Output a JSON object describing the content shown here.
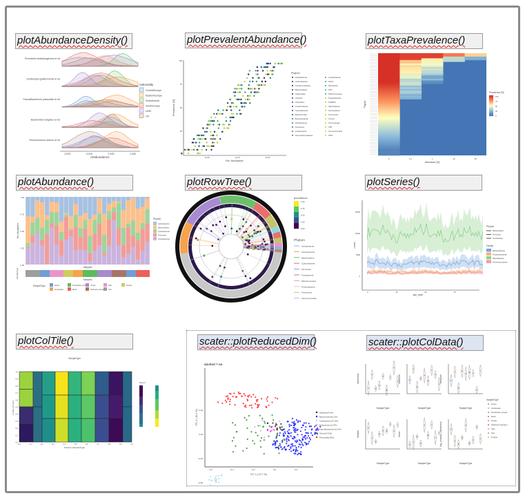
{
  "titles": [
    "plotAbundanceDensity()",
    "plotPrevalentAbundance()",
    "plotTaxaPrevalence()",
    "plotAbundance()",
    "plotRowTree()",
    "plotSeries()",
    "plotColTile()",
    "scater::plotReducedDim()",
    "scater::plotColData()"
  ],
  "density": {
    "taxa": [
      "Prevotella melaninogenica et rel.",
      "Oscillospira guillermondii et rel.",
      "Faecalibacterium prausnitzii et rel.",
      "Bacteroides vulgatus et rel.",
      "Ruminococcus obeum et rel."
    ],
    "legend_title": "nationality",
    "legend": [
      "CentralEurope",
      "EasternEurope",
      "Scandinavia",
      "SouthEurope",
      "UKIE",
      "US"
    ],
    "colors": [
      "#6f9ed8",
      "#f7a24c",
      "#6cc06c",
      "#e9706a",
      "#a88bd0",
      "#b08a80"
    ],
    "xticks": [
      "0.001",
      "0.010",
      "0.100",
      "1.000"
    ],
    "xlabel": "relabundance"
  },
  "prevalent": {
    "ylabel": "Prevalence [%]",
    "yticks": [
      "100",
      "75",
      "50",
      "25",
      "0"
    ],
    "xlabel": "Rel. Abundance",
    "xticks": [
      "1e-06",
      "1e-04",
      "1e-02"
    ],
    "legend_title": "Phylum",
    "legend": [
      "Acidobacteria",
      "Actinobacteria",
      "Armatimonadetes",
      "Bacteroidetes",
      "Chlamydiae",
      "Chlorobi",
      "Chloroflexi",
      "Crenarchaeota",
      "Cyanobacteria",
      "Elusimicrobia",
      "Euryarchaeota",
      "Fibrobacteres",
      "Firmicutes",
      "Fusobacteria",
      "Gemmatimonadetes",
      "Lentisphaerae",
      "NC10",
      "Nitrospirae",
      "OP3",
      "Planctomycetes",
      "Proteobacteria",
      "SAR406",
      "Spirochaetes",
      "Synergistetes",
      "Tenericutes",
      "Thermi",
      "Thermotogae",
      "TM7",
      "Verrucomicrobia",
      "WS3"
    ]
  },
  "taxaprev": {
    "ylabel": "Phylum",
    "xlabel": "Abundance [%]",
    "xticks": [
      "0",
      "0.1",
      "1",
      "10",
      "25"
    ],
    "legend_title": "Prevalence [%]",
    "legend_ticks": [
      "100",
      "75",
      "50",
      "25",
      "0"
    ]
  },
  "abundance": {
    "ylabel": "Rel. Abundance",
    "yticks": [
      "1.00",
      "0.75",
      "0.50",
      "0.25",
      "0.00"
    ],
    "xlabel": "Samples",
    "strip_label": "SampleType",
    "legend_title": "Phylum",
    "legend": [
      "Actinobacteria",
      "Bacteroidetes",
      "Cyanobacteria",
      "Firmicutes",
      "Proteobacteria"
    ],
    "colors": [
      "#a6c1e2",
      "#fdc08a",
      "#9fd49a",
      "#f29d98",
      "#cbb3de"
    ],
    "sample_legend_title": "SampleType",
    "sample_types": [
      "Feces",
      "Freshwater",
      "Freshwater (creek)",
      "Mock",
      "Ocean",
      "Sediment (estuary)",
      "Skin",
      "Soil",
      "Tongue"
    ],
    "sample_colors": [
      "#6f9ed8",
      "#f7a24c",
      "#5cbc5c",
      "#ea615a",
      "#a98acb",
      "#a77566",
      "#ea95c8",
      "#9e9e9e",
      "#cfcc5e"
    ]
  },
  "rowtree": {
    "prev_title": "prevalence",
    "prev_ticks": [
      "1.00",
      "0.75",
      "0.50",
      "0.25",
      "0.00"
    ],
    "legend_title": "Phylum",
    "legend": [
      "Acidobacteria",
      "Actinobacteria",
      "Bacteroidetes",
      "Cyanobacteria",
      "Firmicutes",
      "Fusobacteria",
      "Planctomycetes",
      "Proteobacteria",
      "Tenericutes",
      "Verrucomicrobia"
    ],
    "colors": [
      "#8fb5dc",
      "#f7a24c",
      "#6cc06c",
      "#e9706a",
      "#a88bd0",
      "#b08a80",
      "#ea95c8",
      "#c8c8c8",
      "#c4c46a",
      "#8ed6e0"
    ]
  },
  "series": {
    "ylabel": "counts",
    "yticks": [
      "15000",
      "10000",
      "5000",
      "0"
    ],
    "xlabel": "pair_order",
    "xticks": [
      "0",
      "25",
      "50",
      "75"
    ],
    "phylum_title": "Phylum",
    "phylum": [
      "Bacteroidetes",
      "Firmicutes",
      "Fusobacteria"
    ],
    "family_title": "Family",
    "family": [
      "Bacteroidaceae",
      "Fusobacteriaceae",
      "Rikenellaceae",
      "Ruminococcaceae"
    ],
    "family_colors": [
      "#7aa6dc",
      "#f7b27a",
      "#8fd08a",
      "#f29d98"
    ]
  },
  "coltile": {
    "top_label": "SampleType",
    "ylabel": "Fraction (Primer)",
    "xlabel": "Fraction (SampleType)",
    "legend_title": "Primer",
    "xticks": [
      "0.0",
      "0.1",
      "0.2",
      "0.3",
      "0.4",
      "0.5",
      "0.6",
      "0.7",
      "0.8",
      "0.9",
      "1.0"
    ],
    "yticks": [
      "1.0",
      "0.9",
      "0.8",
      "0.7",
      "0.6",
      "0.5",
      "0.4",
      "0.3",
      "0.2",
      "0.1",
      "0.0"
    ]
  },
  "reduced": {
    "panel_title": "alcohol = no",
    "xlabel": "PC 1 ( 21.7 %)",
    "ylabel": "PC 2 ( 16.2 %)",
    "xticks": [
      "-0.6",
      "-0.4",
      "-0.2",
      "0.0",
      "0.2"
    ],
    "yticks": [
      "0.25",
      "0.00",
      "-0.25",
      "-0.50"
    ],
    "legend": [
      "Alistipes(4.6%)",
      "Bacteroides(61.2%)",
      "Cutibacterium(7.6%)",
      "Eubacterium(1.6%)",
      "Faecalibacterium(1.6%)",
      "Other(14.3%)",
      "Prevotella(19%)"
    ],
    "colors": [
      "#222222",
      "#1a1aff",
      "#a8d8e8",
      "#bbbbbb",
      "#ff22ff",
      "#2e8b2e",
      "#ff2020"
    ]
  },
  "coldata": {
    "panels": [
      "observed",
      "shannon",
      "simpson",
      "relative",
      "fisher",
      "log_modulo_skewness"
    ],
    "xlabel": "SampleType",
    "legend_title": "SampleType"
  }
}
